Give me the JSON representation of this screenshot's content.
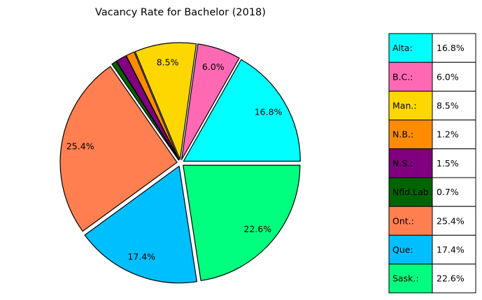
{
  "chart_data": {
    "type": "pie",
    "title": "Vacancy Rate for Bachelor  (2018)",
    "slices": [
      {
        "label": "Alta:",
        "value": 16.8,
        "pct_label": "16.8%",
        "color": "#00FFFF"
      },
      {
        "label": "B.C.:",
        "value": 6.0,
        "pct_label": "6.0%",
        "color": "#FF69B4"
      },
      {
        "label": "Man.:",
        "value": 8.5,
        "pct_label": "8.5%",
        "color": "#FFD700"
      },
      {
        "label": "N.B.:",
        "value": 1.2,
        "pct_label": "1.2%",
        "color": "#FF8C00"
      },
      {
        "label": "N.S.:",
        "value": 1.5,
        "pct_label": "1.5%",
        "color": "#800080"
      },
      {
        "label": "Nfld.Lab",
        "value": 0.7,
        "pct_label": "0.7%",
        "color": "#006400"
      },
      {
        "label": "Ont.:",
        "value": 25.4,
        "pct_label": "25.4%",
        "color": "#FF7F50"
      },
      {
        "label": "Que:",
        "value": 17.4,
        "pct_label": "17.4%",
        "color": "#00BFFF"
      },
      {
        "label": "Sask.:",
        "value": 22.6,
        "pct_label": "22.6%",
        "color": "#00FF7F"
      }
    ],
    "start_angle_deg": 0,
    "direction": "counterclockwise",
    "explode": true,
    "legend": "right-table"
  }
}
